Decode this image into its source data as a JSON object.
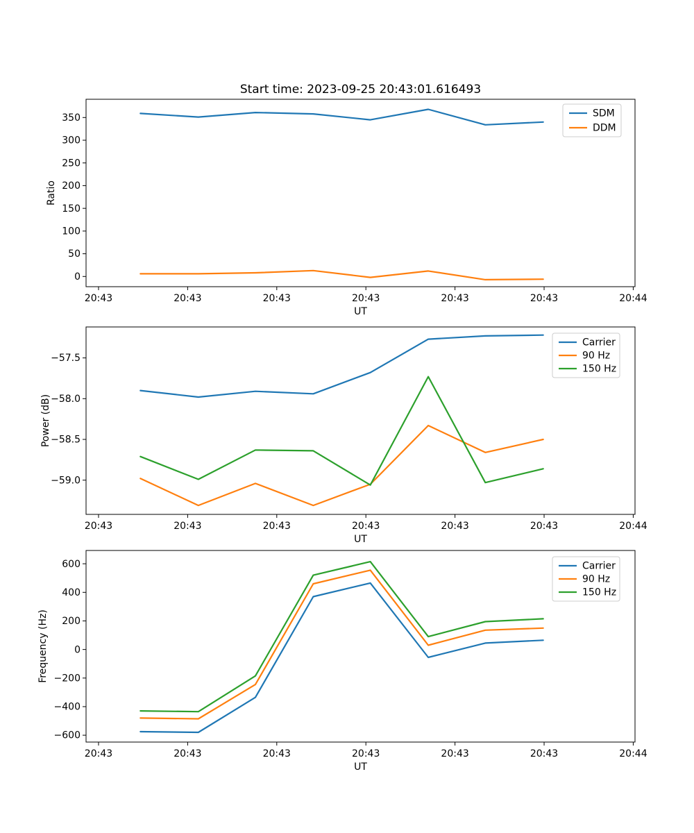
{
  "figure_title": "Start time: 2023-09-25 20:43:01.616493",
  "colors": {
    "blue": "#1f77b4",
    "orange": "#ff7f0e",
    "green": "#2ca02c"
  },
  "chart_data": [
    {
      "type": "line",
      "title": "Start time: 2023-09-25 20:43:01.616493",
      "xlabel": "UT",
      "ylabel": "Ratio",
      "grid": false,
      "legend_position": "upper right",
      "x_seconds_after_20_43_00": [
        4.7,
        11.2,
        17.6,
        24.1,
        30.5,
        37.0,
        43.4,
        49.9
      ],
      "xtick_values": [
        0,
        10,
        20,
        30,
        40,
        50,
        60
      ],
      "xtick_labels": [
        "20:43",
        "20:43",
        "20:43",
        "20:43",
        "20:43",
        "20:43",
        "20:44"
      ],
      "ytick_values": [
        0,
        50,
        100,
        150,
        200,
        250,
        300,
        350
      ],
      "ytick_labels": [
        "0",
        "50",
        "100",
        "150",
        "200",
        "250",
        "300",
        "350"
      ],
      "xlim": [
        -1.4,
        60.2
      ],
      "ylim": [
        -22.5,
        390.2
      ],
      "series": [
        {
          "name": "SDM",
          "color": "#1f77b4",
          "values": [
            359,
            351,
            361,
            358,
            345,
            368,
            334,
            340
          ]
        },
        {
          "name": "DDM",
          "color": "#ff7f0e",
          "values": [
            6,
            6,
            8,
            13,
            -2,
            12,
            -7,
            -6
          ]
        }
      ]
    },
    {
      "type": "line",
      "title": "",
      "xlabel": "UT",
      "ylabel": "Power (dB)",
      "grid": false,
      "legend_position": "upper right",
      "x_seconds_after_20_43_00": [
        4.7,
        11.2,
        17.6,
        24.1,
        30.5,
        37.0,
        43.4,
        49.9
      ],
      "xtick_values": [
        0,
        10,
        20,
        30,
        40,
        50,
        60
      ],
      "xtick_labels": [
        "20:43",
        "20:43",
        "20:43",
        "20:43",
        "20:43",
        "20:43",
        "20:44"
      ],
      "ytick_values": [
        -57.5,
        -58.0,
        -58.5,
        -59.0
      ],
      "ytick_labels": [
        "−57.5",
        "−58.0",
        "−58.5",
        "−59.0"
      ],
      "xlim": [
        -1.4,
        60.2
      ],
      "ylim": [
        -59.42,
        -57.12
      ],
      "series": [
        {
          "name": "Carrier",
          "color": "#1f77b4",
          "values": [
            -57.9,
            -57.98,
            -57.91,
            -57.94,
            -57.68,
            -57.27,
            -57.23,
            -57.22
          ]
        },
        {
          "name": "90 Hz",
          "color": "#ff7f0e",
          "values": [
            -58.98,
            -59.31,
            -59.04,
            -59.31,
            -59.05,
            -58.33,
            -58.66,
            -58.5
          ]
        },
        {
          "name": "150 Hz",
          "color": "#2ca02c",
          "values": [
            -58.71,
            -58.99,
            -58.63,
            -58.64,
            -59.06,
            -57.73,
            -59.03,
            -58.86
          ]
        }
      ]
    },
    {
      "type": "line",
      "title": "",
      "xlabel": "UT",
      "ylabel": "Frequency (Hz)",
      "grid": false,
      "legend_position": "upper right",
      "x_seconds_after_20_43_00": [
        4.7,
        11.2,
        17.6,
        24.1,
        30.5,
        37.0,
        43.4,
        49.9
      ],
      "xtick_values": [
        0,
        10,
        20,
        30,
        40,
        50,
        60
      ],
      "xtick_labels": [
        "20:43",
        "20:43",
        "20:43",
        "20:43",
        "20:43",
        "20:43",
        "20:44"
      ],
      "ytick_values": [
        600,
        400,
        200,
        0,
        -200,
        -400,
        -600
      ],
      "ytick_labels": [
        "600",
        "400",
        "200",
        "0",
        "−200",
        "−400",
        "−600"
      ],
      "xlim": [
        -1.4,
        60.2
      ],
      "ylim": [
        -648,
        693
      ],
      "series": [
        {
          "name": "Carrier",
          "color": "#1f77b4",
          "values": [
            -575,
            -580,
            -335,
            370,
            465,
            -55,
            45,
            65
          ]
        },
        {
          "name": "90 Hz",
          "color": "#ff7f0e",
          "values": [
            -480,
            -485,
            -245,
            460,
            555,
            30,
            135,
            150
          ]
        },
        {
          "name": "150 Hz",
          "color": "#2ca02c",
          "values": [
            -430,
            -435,
            -185,
            520,
            615,
            90,
            195,
            215
          ]
        }
      ]
    }
  ]
}
